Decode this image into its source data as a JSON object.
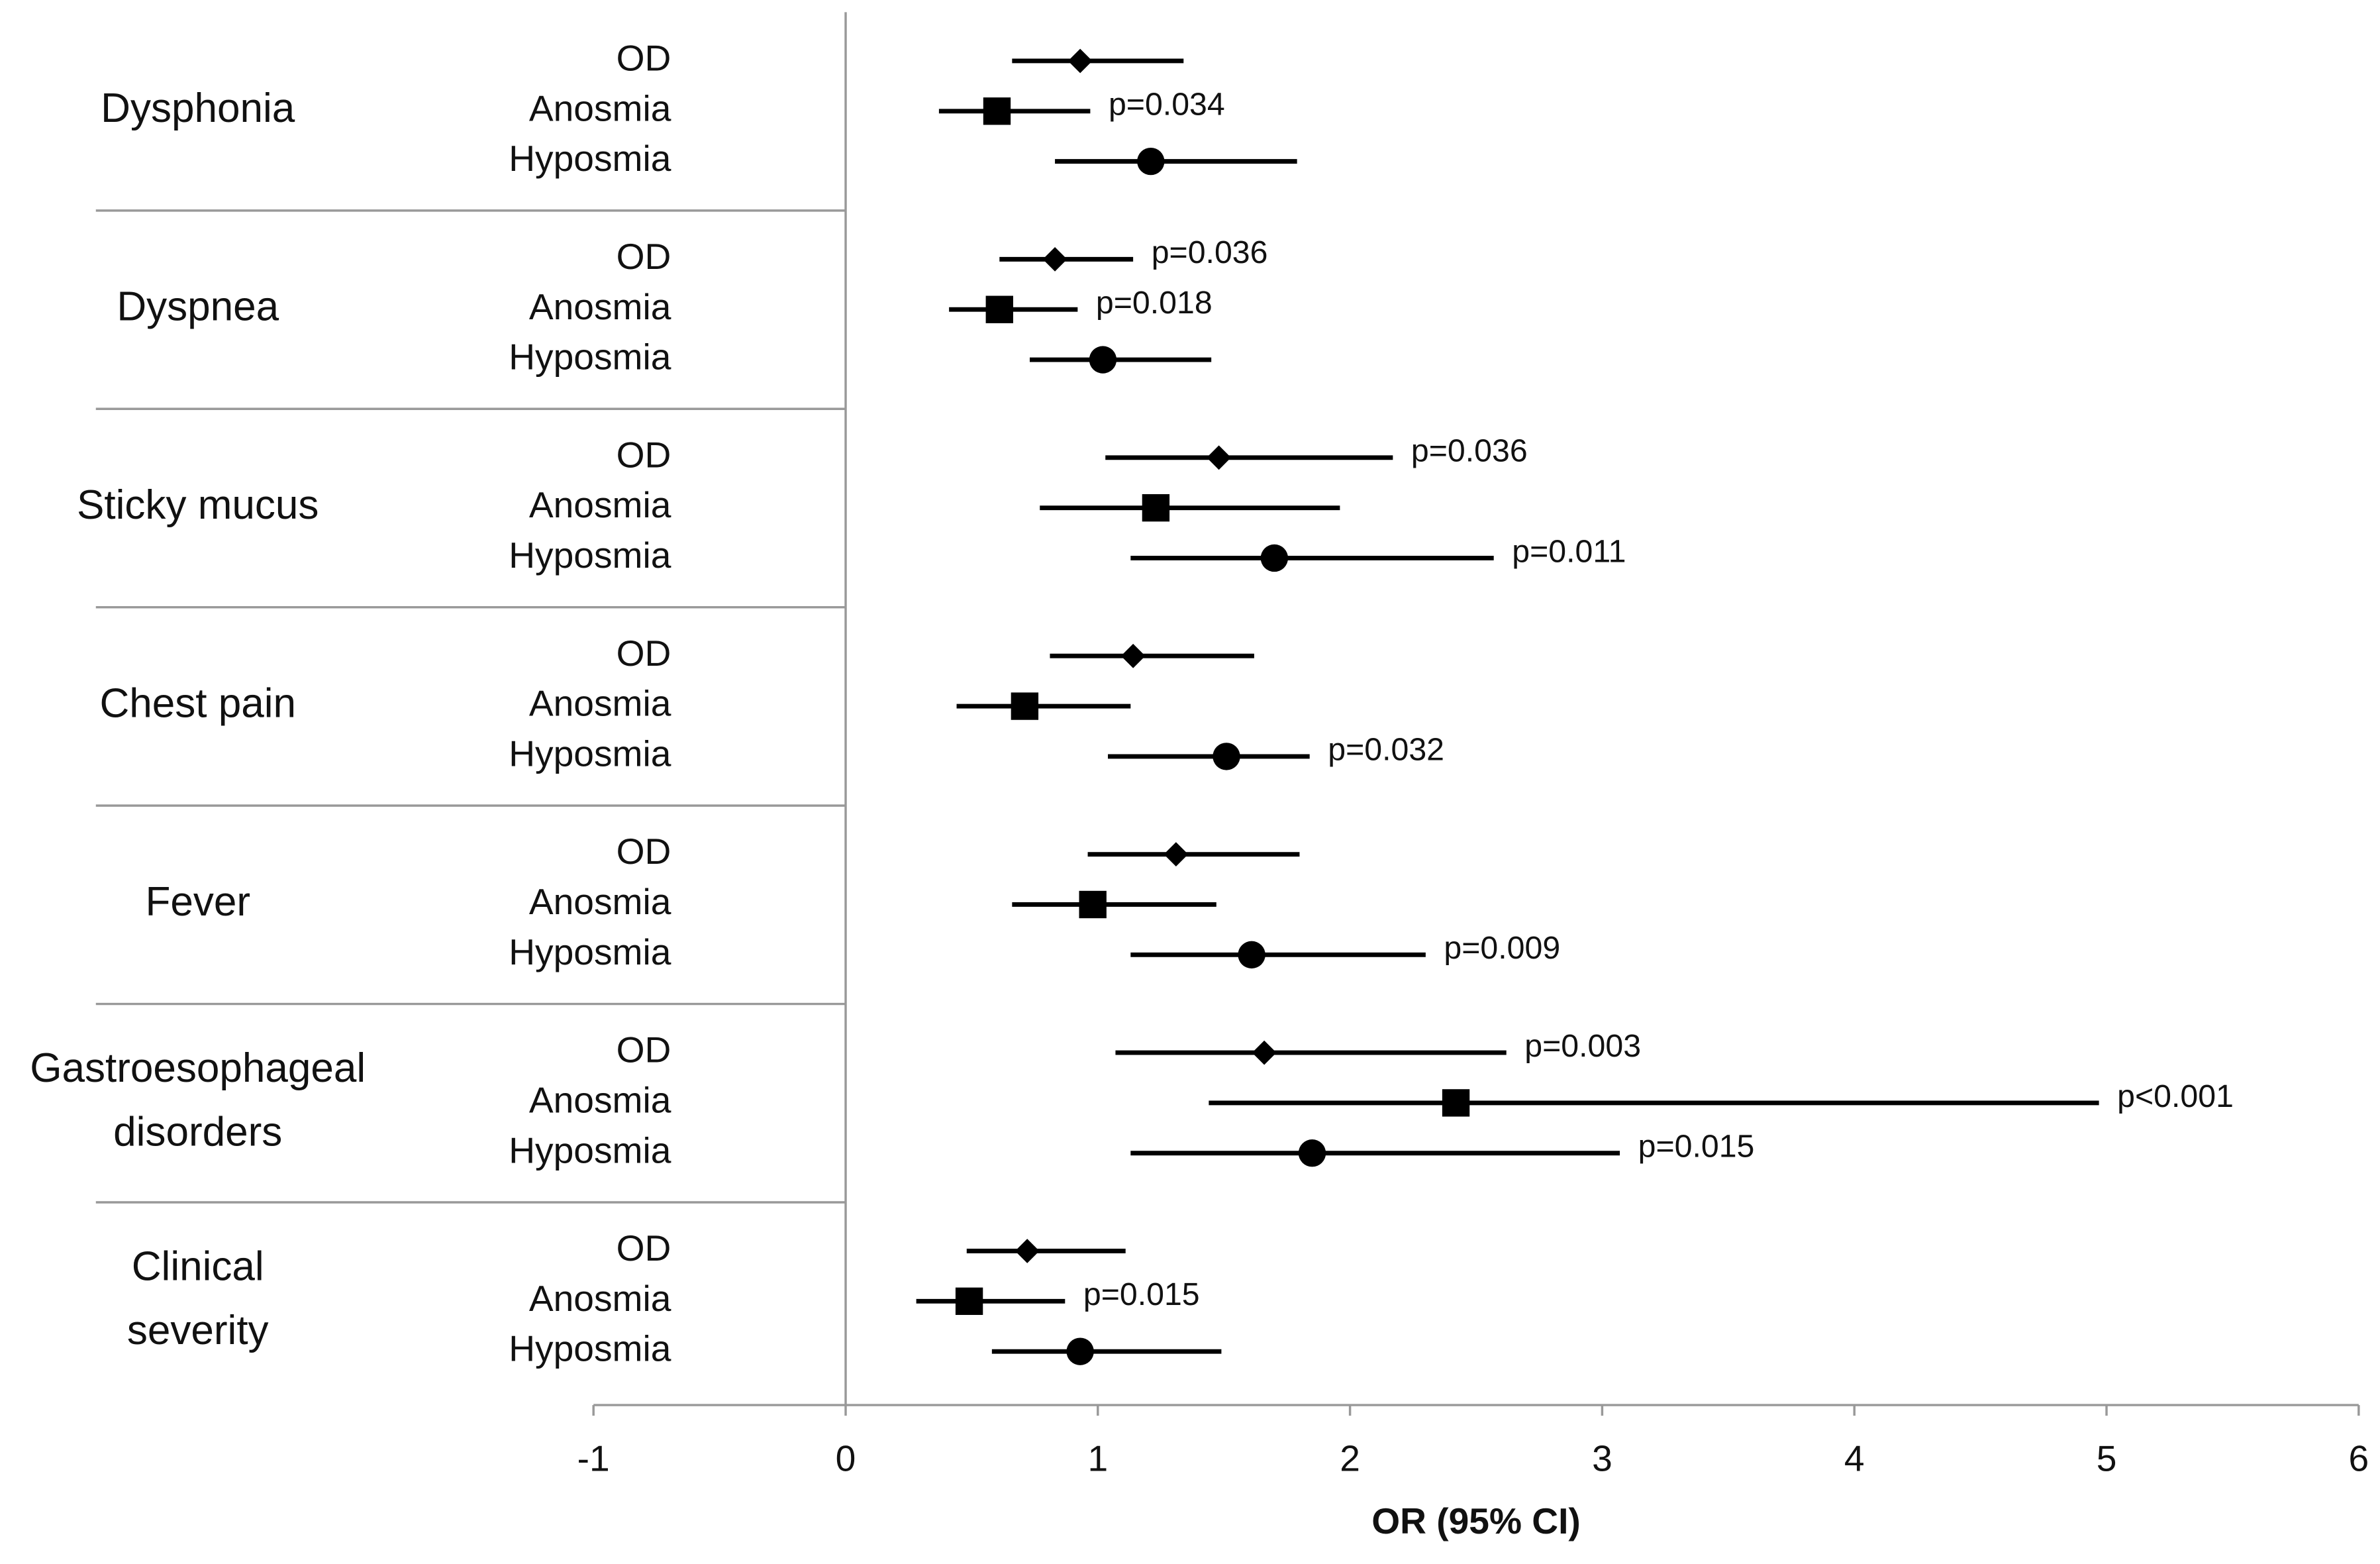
{
  "chart_data": {
    "type": "forest",
    "xlabel": "OR (95% CI)",
    "xlim": [
      -1,
      6
    ],
    "xticks": [
      -1,
      0,
      1,
      2,
      3,
      4,
      5,
      6
    ],
    "color": "#000000",
    "groups": [
      {
        "label": [
          "Dysphonia"
        ],
        "rows": [
          {
            "name": "OD",
            "estimate": 0.93,
            "lower": 0.66,
            "upper": 1.34
          },
          {
            "name": "Anosmia",
            "estimate": 0.6,
            "lower": 0.37,
            "upper": 0.97,
            "p_label": "p=0.034"
          },
          {
            "name": "Hyposmia",
            "estimate": 1.21,
            "lower": 0.83,
            "upper": 1.79
          }
        ]
      },
      {
        "label": [
          "Dyspnea"
        ],
        "rows": [
          {
            "name": "OD",
            "estimate": 0.83,
            "lower": 0.61,
            "upper": 1.14,
            "p_label": "p=0.036"
          },
          {
            "name": "Anosmia",
            "estimate": 0.61,
            "lower": 0.41,
            "upper": 0.92,
            "p_label": "p=0.018"
          },
          {
            "name": "Hyposmia",
            "estimate": 1.02,
            "lower": 0.73,
            "upper": 1.45
          }
        ]
      },
      {
        "label": [
          "Sticky mucus"
        ],
        "rows": [
          {
            "name": "OD",
            "estimate": 1.48,
            "lower": 1.03,
            "upper": 2.17,
            "p_label": "p=0.036"
          },
          {
            "name": "Anosmia",
            "estimate": 1.23,
            "lower": 0.77,
            "upper": 1.96
          },
          {
            "name": "Hyposmia",
            "estimate": 1.7,
            "lower": 1.13,
            "upper": 2.57,
            "p_label": "p=0.011"
          }
        ]
      },
      {
        "label": [
          "Chest pain"
        ],
        "rows": [
          {
            "name": "OD",
            "estimate": 1.14,
            "lower": 0.81,
            "upper": 1.62
          },
          {
            "name": "Anosmia",
            "estimate": 0.71,
            "lower": 0.44,
            "upper": 1.13
          },
          {
            "name": "Hyposmia",
            "estimate": 1.51,
            "lower": 1.04,
            "upper": 1.84,
            "p_label": "p=0.032"
          }
        ]
      },
      {
        "label": [
          "Fever"
        ],
        "rows": [
          {
            "name": "OD",
            "estimate": 1.31,
            "lower": 0.96,
            "upper": 1.8
          },
          {
            "name": "Anosmia",
            "estimate": 0.98,
            "lower": 0.66,
            "upper": 1.47
          },
          {
            "name": "Hyposmia",
            "estimate": 1.61,
            "lower": 1.13,
            "upper": 2.3,
            "p_label": "p=0.009"
          }
        ]
      },
      {
        "label": [
          "Gastroesophageal",
          "disorders"
        ],
        "rows": [
          {
            "name": "OD",
            "estimate": 1.66,
            "lower": 1.07,
            "upper": 2.62,
            "p_label": "p=0.003"
          },
          {
            "name": "Anosmia",
            "estimate": 2.42,
            "lower": 1.44,
            "upper": 4.97,
            "p_label": "p<0.001"
          },
          {
            "name": "Hyposmia",
            "estimate": 1.85,
            "lower": 1.13,
            "upper": 3.07,
            "p_label": "p=0.015"
          }
        ]
      },
      {
        "label": [
          "Clinical",
          "severity"
        ],
        "rows": [
          {
            "name": "OD",
            "estimate": 0.72,
            "lower": 0.48,
            "upper": 1.11
          },
          {
            "name": "Anosmia",
            "estimate": 0.49,
            "lower": 0.28,
            "upper": 0.87,
            "p_label": "p=0.015"
          },
          {
            "name": "Hyposmia",
            "estimate": 0.93,
            "lower": 0.58,
            "upper": 1.49
          }
        ]
      }
    ]
  }
}
